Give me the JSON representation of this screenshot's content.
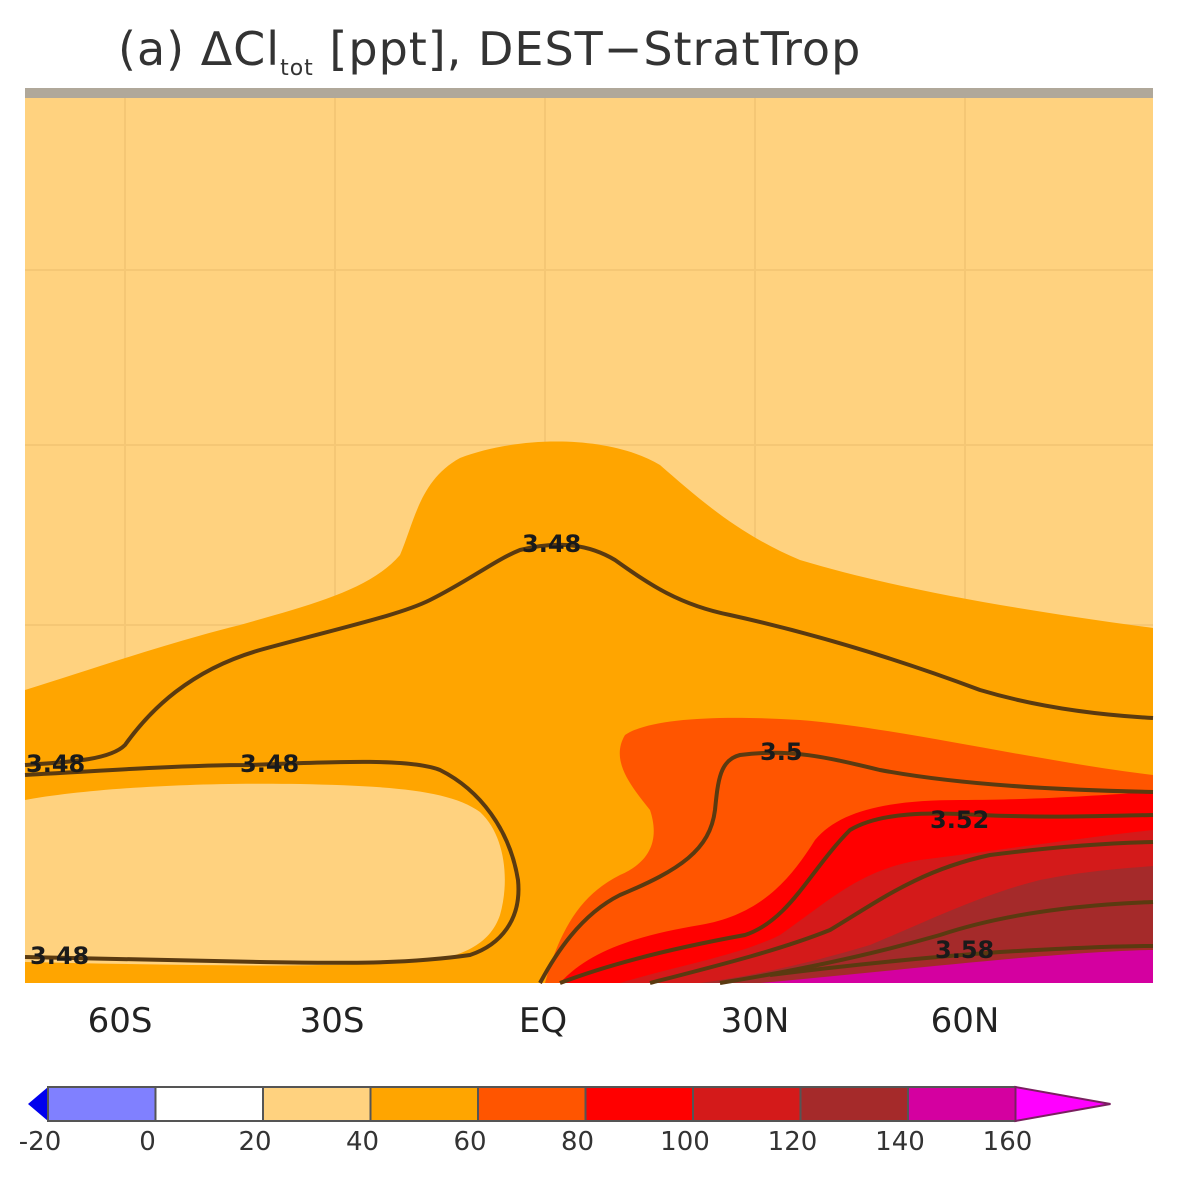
{
  "chart_data": {
    "type": "heatmap",
    "title_prefix": "(a) ΔCl",
    "title_sub": "tot",
    "title_suffix": " [ppt], DEST−StratTrop",
    "x_ticks": [
      "60S",
      "30S",
      "EQ",
      "30N",
      "60N"
    ],
    "colorbar": {
      "levels": [
        -20,
        0,
        20,
        40,
        60,
        80,
        100,
        120,
        140,
        160
      ],
      "labels": [
        "-20",
        "0",
        "20",
        "40",
        "60",
        "80",
        "100",
        "120",
        "140",
        "160"
      ],
      "colors": [
        "#8080ff",
        "#ffffff",
        "#ffd27f",
        "#ffa500",
        "#ff5500",
        "#ff0000",
        "#d41a1a",
        "#a52a2a",
        "#d400a0",
        "#ff00ff"
      ],
      "extend": "both"
    },
    "contours": [
      {
        "label": "3.48"
      },
      {
        "label": "3.48"
      },
      {
        "label": "3.48"
      },
      {
        "label": "3.48"
      },
      {
        "label": "3.5"
      },
      {
        "label": "3.52"
      },
      {
        "label": "3.58"
      }
    ]
  }
}
